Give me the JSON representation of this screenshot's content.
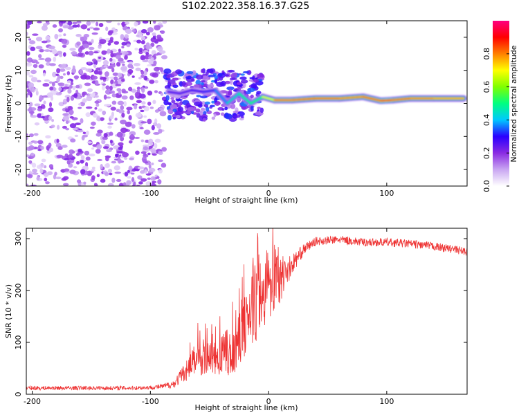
{
  "title": "S102.2022.358.16.37.G25",
  "chart_data": [
    {
      "type": "heatmap",
      "xlabel": "Height of straight line (km)",
      "ylabel": "Frequency (Hz)",
      "xlim": [
        -205,
        168
      ],
      "ylim": [
        -25,
        25
      ],
      "x_ticks": [
        -200,
        -100,
        0,
        100
      ],
      "y_ticks": [
        -20,
        -10,
        0,
        10,
        20
      ],
      "colorbar": {
        "label": "Normalized spectral amplitude",
        "range": [
          0,
          1
        ],
        "ticks": [
          0.0,
          0.2,
          0.4,
          0.6,
          0.8
        ],
        "colormap": [
          "#ffffff",
          "#c9a6f2",
          "#8a2be2",
          "#2a00ff",
          "#00c8ff",
          "#00ff80",
          "#7fff00",
          "#ffff00",
          "#ff8000",
          "#ff0000",
          "#ff0080"
        ]
      },
      "noise_region": {
        "x_range": [
          -205,
          -88
        ],
        "freq_range": [
          -25,
          25
        ],
        "amplitude": 0.1
      },
      "transition_region": {
        "x_range": [
          -88,
          -5
        ],
        "freq_range": [
          -5,
          10
        ],
        "amplitude": 0.2
      },
      "ridge": [
        {
          "x": -85,
          "freq": 3.5,
          "amp": 0.3
        },
        {
          "x": -75,
          "freq": 3.0,
          "amp": 0.25
        },
        {
          "x": -65,
          "freq": 4.0,
          "amp": 0.3
        },
        {
          "x": -55,
          "freq": 3.5,
          "amp": 0.3
        },
        {
          "x": -45,
          "freq": 4.0,
          "amp": 0.35
        },
        {
          "x": -35,
          "freq": 0.0,
          "amp": 0.4
        },
        {
          "x": -25,
          "freq": 3.0,
          "amp": 0.5
        },
        {
          "x": -15,
          "freq": 0.0,
          "amp": 0.5
        },
        {
          "x": -5,
          "freq": 2.0,
          "amp": 0.55
        },
        {
          "x": 5,
          "freq": 1.0,
          "amp": 0.8
        },
        {
          "x": 20,
          "freq": 1.0,
          "amp": 0.85
        },
        {
          "x": 40,
          "freq": 1.5,
          "amp": 0.8
        },
        {
          "x": 60,
          "freq": 1.5,
          "amp": 0.85
        },
        {
          "x": 80,
          "freq": 2.0,
          "amp": 0.75
        },
        {
          "x": 95,
          "freq": 0.8,
          "amp": 0.9
        },
        {
          "x": 105,
          "freq": 1.0,
          "amp": 0.85
        },
        {
          "x": 120,
          "freq": 1.5,
          "amp": 0.8
        },
        {
          "x": 140,
          "freq": 1.5,
          "amp": 0.8
        },
        {
          "x": 165,
          "freq": 1.5,
          "amp": 0.75
        }
      ]
    },
    {
      "type": "line",
      "xlabel": "Height of straight line (km)",
      "ylabel": "SNR (10 * v/v)",
      "xlim": [
        -205,
        168
      ],
      "ylim": [
        0,
        320
      ],
      "x_ticks": [
        -200,
        -100,
        0,
        100
      ],
      "y_ticks": [
        0,
        100,
        200,
        300
      ],
      "series": [
        {
          "color": "#ee3333",
          "x": [
            -205,
            -180,
            -150,
            -120,
            -100,
            -90,
            -80,
            -70,
            -65,
            -60,
            -50,
            -40,
            -30,
            -20,
            -15,
            -10,
            -5,
            0,
            10,
            20,
            30,
            40,
            60,
            80,
            100,
            120,
            140,
            160,
            168
          ],
          "y": [
            12,
            12,
            12,
            12,
            13,
            15,
            20,
            45,
            60,
            70,
            70,
            75,
            85,
            130,
            160,
            170,
            190,
            210,
            225,
            250,
            280,
            295,
            298,
            293,
            293,
            290,
            285,
            278,
            275
          ],
          "noise": [
            4,
            4,
            4,
            4,
            4,
            5,
            8,
            20,
            30,
            35,
            30,
            40,
            50,
            60,
            70,
            70,
            70,
            65,
            50,
            20,
            10,
            8,
            8,
            8,
            8,
            8,
            8,
            8,
            8
          ]
        }
      ]
    }
  ]
}
